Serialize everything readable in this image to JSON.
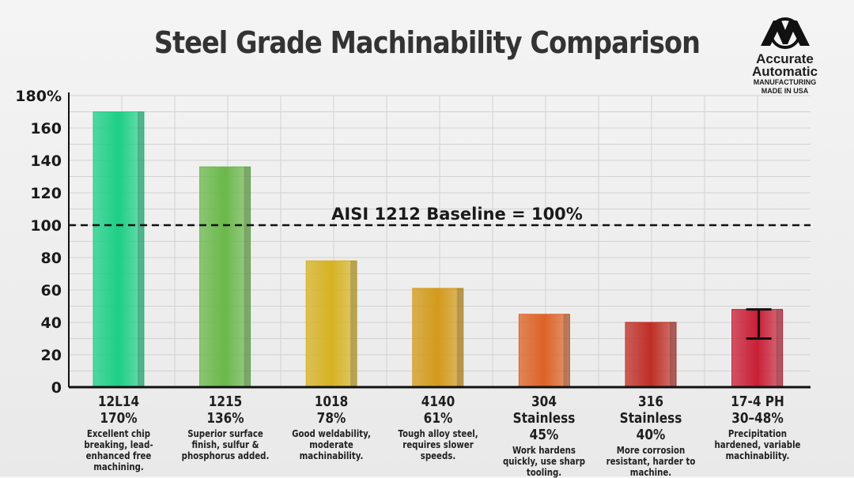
{
  "chart_data": {
    "type": "bar",
    "title": "Steel Grade Machinability Comparison",
    "ylim": [
      0,
      180
    ],
    "yticks": [
      "0",
      "20",
      "40",
      "60",
      "80",
      "100",
      "120",
      "140",
      "160",
      "180%"
    ],
    "grid": true,
    "baseline": {
      "value": 100,
      "label": "AISI 1212 Baseline = 100%"
    },
    "bars": [
      {
        "name": "12L14",
        "value": 170,
        "value_label": "170%",
        "desc": "Excellent chip breaking, lead-enhanced free machining.",
        "color": "#1ccf86"
      },
      {
        "name": "1215",
        "value": 136,
        "value_label": "136%",
        "desc": "Superior surface finish, sulfur & phosphorus added.",
        "color": "#6ab84a"
      },
      {
        "name": "1018",
        "value": 78,
        "value_label": "78%",
        "desc": "Good weldability, moderate machinability.",
        "color": "#d6b222"
      },
      {
        "name": "4140",
        "value": 61,
        "value_label": "61%",
        "desc": "Tough alloy steel, requires slower speeds.",
        "color": "#d39a1a"
      },
      {
        "name": "304 Stainless",
        "value": 45,
        "value_label": "45%",
        "desc": "Work hardens quickly, use sharp tooling.",
        "color": "#dd6226"
      },
      {
        "name": "316 Stainless",
        "value": 40,
        "value_label": "40%",
        "desc": "More corrosion resistant, harder to machine.",
        "color": "#bf2e26"
      },
      {
        "name": "17-4 PH",
        "value": 48,
        "range": [
          30,
          48
        ],
        "value_label": "30–48%",
        "desc": "Precipitation hardened, variable machinability.",
        "color": "#c91f36"
      }
    ]
  },
  "logo": {
    "line1": "Accurate",
    "line2": "Automatic",
    "line3": "MANUFACTURING",
    "line4": "MADE IN USA"
  }
}
